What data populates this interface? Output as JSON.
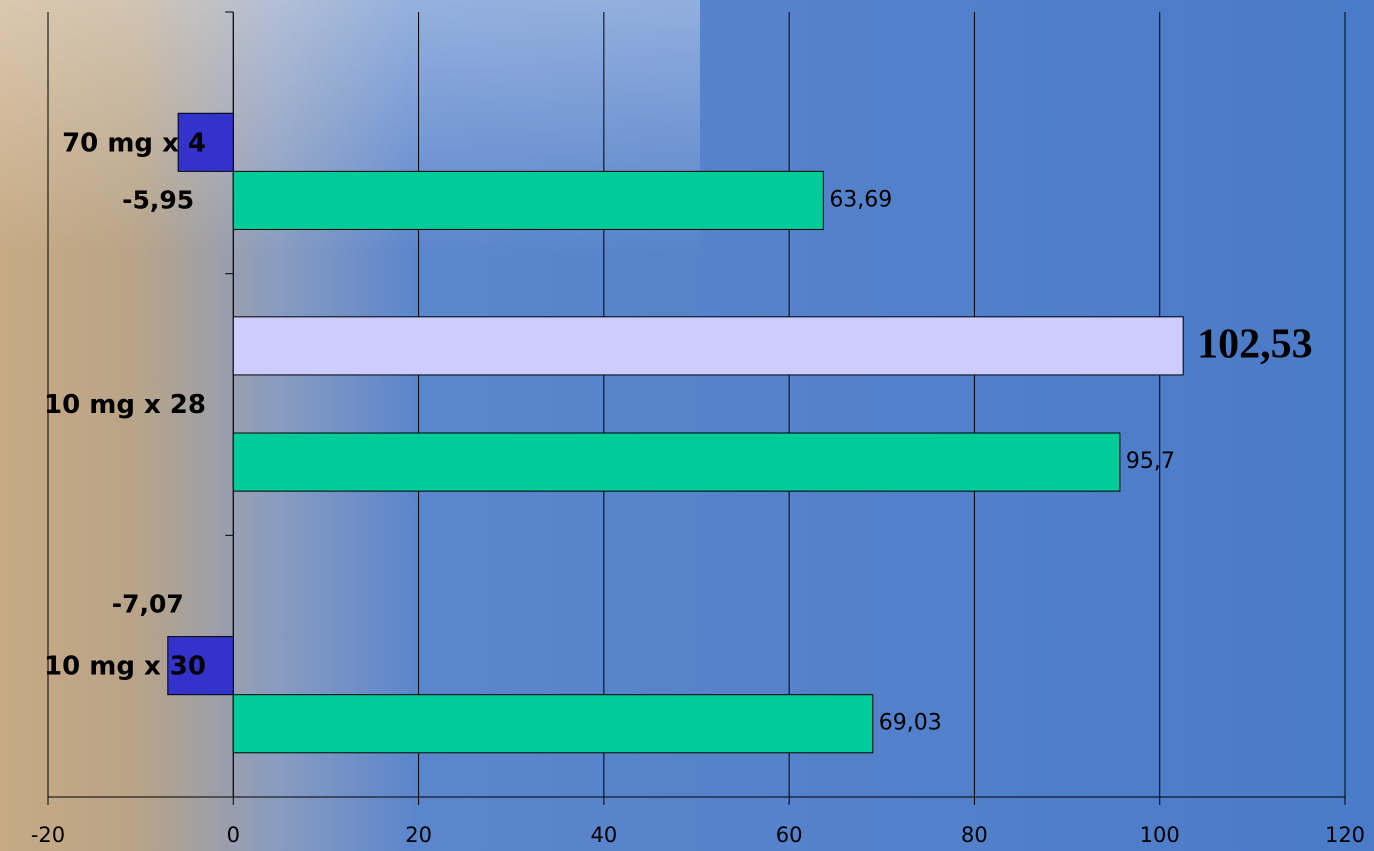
{
  "chart_data": {
    "type": "bar",
    "orientation": "horizontal",
    "categories": [
      "70 mg x 4",
      "10 mg x 28",
      "10 mg x 30"
    ],
    "series": [
      {
        "color": "#ccccff",
        "values": [
          null,
          102.53,
          null
        ],
        "value_labels": [
          null,
          "102,53",
          null
        ]
      },
      {
        "color": "#3333cc",
        "values": [
          -5.95,
          null,
          -7.07
        ],
        "value_labels": [
          "-5,95",
          null,
          "-7,07"
        ]
      },
      {
        "color": "#00cc99",
        "values": [
          63.69,
          95.7,
          69.03
        ],
        "value_labels": [
          "63,69",
          "95,7",
          "69,03"
        ]
      }
    ],
    "xlim": [
      -20,
      120
    ],
    "xticks": [
      -20,
      0,
      20,
      40,
      60,
      80,
      100,
      120
    ],
    "grid": true
  }
}
